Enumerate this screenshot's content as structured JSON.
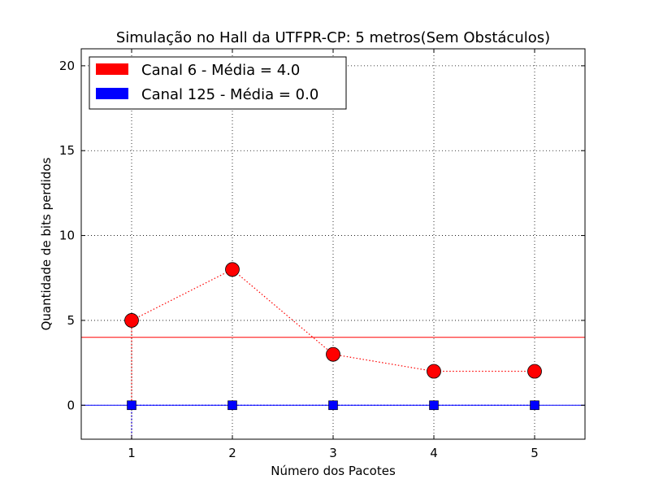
{
  "chart_data": {
    "type": "line",
    "title": "Simulação no Hall da UTFPR-CP: 5 metros(Sem Obstáculos)",
    "xlabel": "Número dos Pacotes",
    "ylabel": "Quantidade de bits perdidos",
    "xlim": [
      0.5,
      5.5
    ],
    "ylim": [
      -2,
      21
    ],
    "x_ticks": [
      1,
      2,
      3,
      4,
      5
    ],
    "y_ticks": [
      0,
      5,
      10,
      15,
      20
    ],
    "grid": true,
    "legend_position": "top-left",
    "x": [
      1,
      2,
      3,
      4,
      5
    ],
    "series": [
      {
        "name": "Canal 6 - Média = 4.0",
        "values": [
          5,
          8,
          3,
          2,
          2
        ],
        "mean": 4.0,
        "color": "#ff0000",
        "marker": "circle",
        "line_style": "dotted"
      },
      {
        "name": "Canal 125 - Média = 0.0",
        "values": [
          0,
          0,
          0,
          0,
          0
        ],
        "mean": 0.0,
        "color": "#0000ff",
        "marker": "square",
        "line_style": "dotted"
      }
    ]
  }
}
